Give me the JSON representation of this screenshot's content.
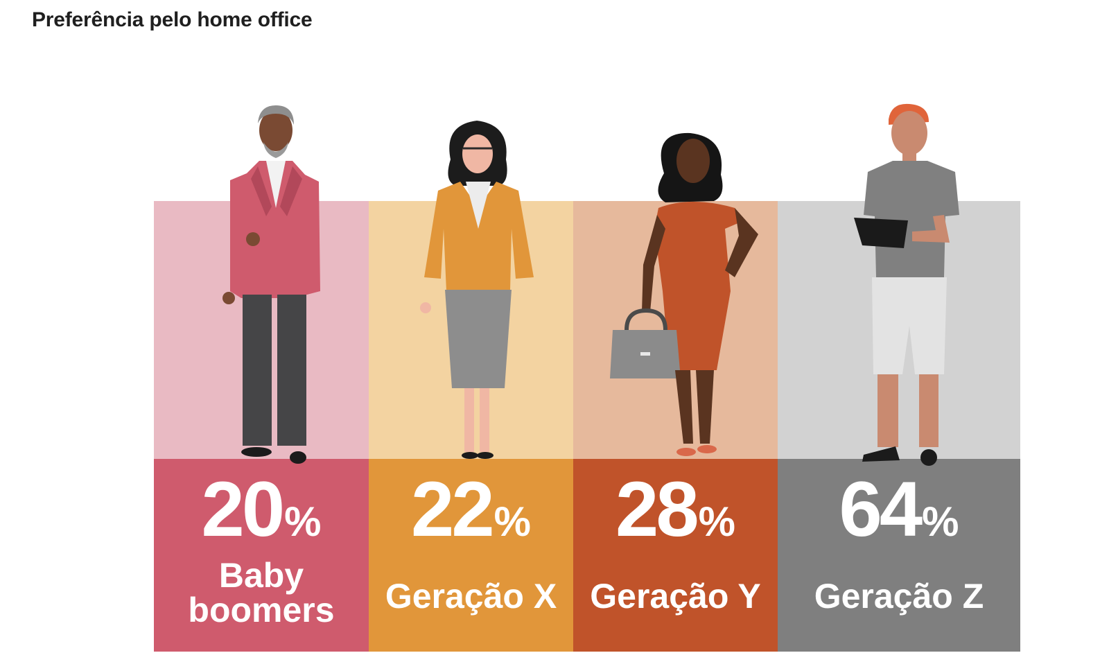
{
  "title": "Preferência pelo home office",
  "colors": {
    "boomers_light": "#e9bac3",
    "boomers_dark": "#cf5b6d",
    "genx_light": "#f3d3a1",
    "genx_dark": "#e1963a",
    "geny_light": "#e6b99c",
    "geny_dark": "#c0532a",
    "genz_light": "#d2d2d2",
    "genz_dark": "#7f7f7f"
  },
  "chart_data": {
    "type": "bar",
    "title": "Preferência pelo home office",
    "unit": "%",
    "categories": [
      "Baby boomers",
      "Geração X",
      "Geração Y",
      "Geração Z"
    ],
    "values": [
      20,
      22,
      28,
      64
    ],
    "label_lines": [
      [
        "Baby",
        "boomers"
      ],
      [
        "Geração X"
      ],
      [
        "Geração Y"
      ],
      [
        "Geração Z"
      ]
    ],
    "value_texts": [
      "20",
      "22",
      "28",
      "64"
    ],
    "percent_sign": "%"
  }
}
